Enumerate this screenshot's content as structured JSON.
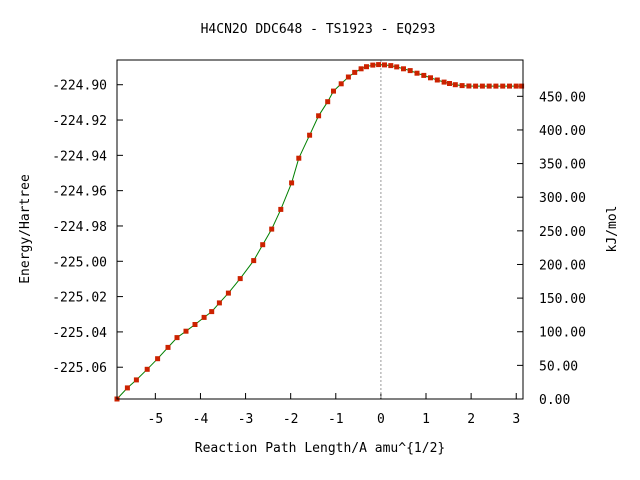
{
  "chart_data": {
    "type": "line",
    "title": "H4CN2O   DDC648 - TS1923 - EQ293",
    "xlabel": "Reaction Path Length/A amu^{1/2}",
    "ylabel": "Energy/Hartree",
    "y2label": "kJ/mol",
    "xlim": [
      -5.85,
      3.15
    ],
    "ylim": [
      -225.078,
      -224.886
    ],
    "y2lim": [
      0.0,
      504.0
    ],
    "x_ticks": [
      "-5",
      "-4",
      "-3",
      "-2",
      "-1",
      "0",
      "1",
      "2",
      "3"
    ],
    "y_ticks": [
      "-224.90",
      "-224.92",
      "-224.94",
      "-224.96",
      "-224.98",
      "-225.00",
      "-225.02",
      "-225.04",
      "-225.06"
    ],
    "y2_ticks": [
      "450.00",
      "400.00",
      "350.00",
      "300.00",
      "250.00",
      "200.00",
      "150.00",
      "100.00",
      "50.00",
      "0.00"
    ],
    "ts_marker_x": 0.0,
    "colors": {
      "line": "#008000",
      "marker": "#cc2200",
      "ts_line": "#999999",
      "frame": "#000000"
    },
    "series": [
      {
        "x": [
          -5.85,
          -5.62,
          -5.42,
          -5.18,
          -4.95,
          -4.72,
          -4.52,
          -4.32,
          -4.12,
          -3.92,
          -3.75,
          -3.58,
          -3.38,
          -3.12,
          -2.82,
          -2.62,
          -2.42,
          -2.22,
          -1.98,
          -1.82,
          -1.58,
          -1.38,
          -1.18,
          -1.05,
          -0.88,
          -0.72,
          -0.58,
          -0.44,
          -0.32,
          -0.18,
          -0.05,
          0.08,
          0.22,
          0.35,
          0.5,
          0.65,
          0.8,
          0.95,
          1.1,
          1.25,
          1.4,
          1.52,
          1.65,
          1.8,
          1.95,
          2.1,
          2.25,
          2.4,
          2.55,
          2.7,
          2.85,
          3.0,
          3.12
        ],
        "y": [
          -225.078,
          -225.0717,
          -225.0672,
          -225.0612,
          -225.0552,
          -225.0488,
          -225.0432,
          -225.0396,
          -225.0358,
          -225.0318,
          -225.0285,
          -225.0236,
          -225.018,
          -225.0098,
          -224.9996,
          -224.9906,
          -224.9818,
          -224.9706,
          -224.9556,
          -224.9416,
          -224.9286,
          -224.9176,
          -224.9096,
          -224.9036,
          -224.8995,
          -224.8956,
          -224.893,
          -224.891,
          -224.8898,
          -224.8889,
          -224.8886,
          -224.8888,
          -224.8892,
          -224.8899,
          -224.891,
          -224.892,
          -224.8935,
          -224.8947,
          -224.8961,
          -224.8973,
          -224.8985,
          -224.8993,
          -224.9,
          -224.9005,
          -224.9007,
          -224.9008,
          -224.9008,
          -224.9008,
          -224.9008,
          -224.9008,
          -224.9008,
          -224.9008,
          -224.9008
        ]
      }
    ]
  }
}
